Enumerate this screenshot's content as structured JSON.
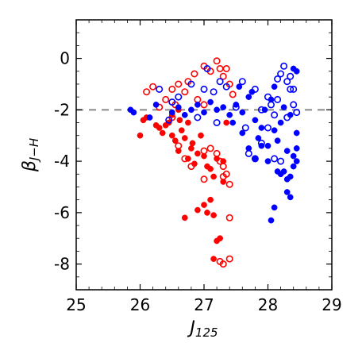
{
  "chart_data": {
    "type": "scatter",
    "title": "",
    "xlabel": {
      "main": "J",
      "sub": "125"
    },
    "ylabel": {
      "main": "β",
      "sub": "J−H"
    },
    "xlim": [
      25,
      29
    ],
    "ylim": [
      -9,
      1.5
    ],
    "xticks": [
      "25",
      "26",
      "27",
      "28",
      "29"
    ],
    "xtick_values": [
      25,
      26,
      27,
      28,
      29
    ],
    "yticks": [
      "0",
      "-2",
      "-4",
      "-6",
      "-8"
    ],
    "ytick_values": [
      0,
      -2,
      -4,
      -6,
      -8
    ],
    "reference_line": {
      "y": -2,
      "style": "dashed",
      "color": "#888888"
    },
    "legend": "none",
    "grid": false,
    "series": [
      {
        "color": "#ff0000",
        "marker": "filled-circle",
        "points": [
          [
            26.0,
            -3.0
          ],
          [
            26.05,
            -2.4
          ],
          [
            26.1,
            -2.3
          ],
          [
            26.3,
            -2.7
          ],
          [
            26.35,
            -2.9
          ],
          [
            26.4,
            -2.6
          ],
          [
            26.5,
            -3.0
          ],
          [
            26.55,
            -3.2
          ],
          [
            26.6,
            -3.6
          ],
          [
            26.62,
            -2.4
          ],
          [
            26.65,
            -2.8
          ],
          [
            26.7,
            -3.1
          ],
          [
            26.75,
            -3.9
          ],
          [
            26.8,
            -3.5
          ],
          [
            26.82,
            -3.3
          ],
          [
            26.85,
            -4.1
          ],
          [
            26.9,
            -3.7
          ],
          [
            26.95,
            -3.0
          ],
          [
            27.0,
            -3.8
          ],
          [
            27.05,
            -4.2
          ],
          [
            27.1,
            -4.3
          ],
          [
            27.15,
            -4.6
          ],
          [
            27.2,
            -3.9
          ],
          [
            27.3,
            -4.0
          ],
          [
            26.7,
            -6.2
          ],
          [
            26.9,
            -5.9
          ],
          [
            27.0,
            -5.7
          ],
          [
            27.1,
            -5.5
          ],
          [
            27.15,
            -6.1
          ],
          [
            27.05,
            -6.0
          ],
          [
            27.2,
            -7.1
          ],
          [
            27.25,
            -7.0
          ],
          [
            27.15,
            -7.8
          ],
          [
            27.3,
            -4.8
          ],
          [
            27.35,
            -2.5
          ],
          [
            26.5,
            -2.2
          ],
          [
            26.6,
            -2.0
          ],
          [
            26.45,
            -2.5
          ],
          [
            26.25,
            -2.6
          ],
          [
            26.75,
            -2.5
          ]
        ]
      },
      {
        "color": "#ff0000",
        "marker": "open-circle",
        "points": [
          [
            26.1,
            -1.3
          ],
          [
            26.2,
            -1.1
          ],
          [
            26.3,
            -1.9
          ],
          [
            26.4,
            -1.6
          ],
          [
            26.5,
            -1.2
          ],
          [
            26.6,
            -1.0
          ],
          [
            26.7,
            -1.3
          ],
          [
            26.75,
            -0.9
          ],
          [
            26.85,
            -0.6
          ],
          [
            27.0,
            -0.3
          ],
          [
            27.1,
            -0.5
          ],
          [
            27.2,
            -0.1
          ],
          [
            27.25,
            -0.4
          ],
          [
            27.3,
            -0.7
          ],
          [
            27.35,
            -0.4
          ],
          [
            27.4,
            -1.0
          ],
          [
            27.45,
            -1.4
          ],
          [
            26.5,
            -2.3
          ],
          [
            26.6,
            -3.4
          ],
          [
            26.7,
            -3.9
          ],
          [
            26.8,
            -4.2
          ],
          [
            27.0,
            -3.6
          ],
          [
            27.1,
            -3.5
          ],
          [
            27.2,
            -3.7
          ],
          [
            27.25,
            -4.0
          ],
          [
            27.3,
            -4.2
          ],
          [
            27.35,
            -4.5
          ],
          [
            27.4,
            -4.9
          ],
          [
            27.4,
            -6.2
          ],
          [
            27.0,
            -4.7
          ],
          [
            27.3,
            -4.6
          ],
          [
            27.25,
            -7.9
          ],
          [
            27.4,
            -7.8
          ],
          [
            27.3,
            -8.0
          ],
          [
            26.9,
            -1.6
          ],
          [
            27.0,
            -1.8
          ],
          [
            26.55,
            -1.8
          ]
        ]
      },
      {
        "color": "#0000ff",
        "marker": "filled-circle",
        "points": [
          [
            25.85,
            -2.0
          ],
          [
            25.9,
            -2.1
          ],
          [
            26.15,
            -2.3
          ],
          [
            26.25,
            -1.8
          ],
          [
            26.5,
            -2.1
          ],
          [
            26.6,
            -1.9
          ],
          [
            26.7,
            -2.2
          ],
          [
            26.8,
            -2.0
          ],
          [
            26.9,
            -1.8
          ],
          [
            27.0,
            -2.1
          ],
          [
            27.1,
            -1.7
          ],
          [
            27.2,
            -2.0
          ],
          [
            27.3,
            -1.9
          ],
          [
            27.4,
            -2.2
          ],
          [
            27.5,
            -1.8
          ],
          [
            27.6,
            -2.1
          ],
          [
            27.7,
            -1.5
          ],
          [
            27.75,
            -1.3
          ],
          [
            27.8,
            -2.4
          ],
          [
            27.85,
            -3.1
          ],
          [
            27.9,
            -2.7
          ],
          [
            27.95,
            -2.0
          ],
          [
            28.0,
            -3.4
          ],
          [
            28.05,
            -1.6
          ],
          [
            28.1,
            -2.8
          ],
          [
            28.15,
            -3.2
          ],
          [
            28.2,
            -2.5
          ],
          [
            28.25,
            -1.9
          ],
          [
            28.3,
            -3.6
          ],
          [
            28.35,
            -2.2
          ],
          [
            28.4,
            -3.8
          ],
          [
            28.45,
            -2.9
          ],
          [
            27.7,
            -3.5
          ],
          [
            27.8,
            -3.9
          ],
          [
            27.9,
            -3.4
          ],
          [
            28.0,
            -4.0
          ],
          [
            28.1,
            -5.8
          ],
          [
            28.05,
            -6.3
          ],
          [
            28.3,
            -4.7
          ],
          [
            28.35,
            -4.6
          ],
          [
            28.4,
            -4.2
          ],
          [
            28.45,
            -4.0
          ],
          [
            28.45,
            -3.5
          ],
          [
            28.2,
            -4.5
          ],
          [
            28.15,
            -4.4
          ],
          [
            28.35,
            -5.4
          ],
          [
            28.45,
            -0.5
          ],
          [
            28.4,
            -0.4
          ],
          [
            28.1,
            -1.1
          ],
          [
            27.55,
            -1.1
          ],
          [
            27.6,
            -2.9
          ],
          [
            27.45,
            -2.5
          ],
          [
            28.25,
            -4.4
          ],
          [
            28.3,
            -5.2
          ]
        ]
      },
      {
        "color": "#0000ff",
        "marker": "open-circle",
        "points": [
          [
            26.3,
            -1.2
          ],
          [
            26.45,
            -2.4
          ],
          [
            26.5,
            -1.7
          ],
          [
            26.6,
            -1.5
          ],
          [
            26.8,
            -1.0
          ],
          [
            27.0,
            -1.2
          ],
          [
            27.15,
            -1.3
          ],
          [
            27.25,
            -0.9
          ],
          [
            27.35,
            -1.1
          ],
          [
            27.5,
            -1.9
          ],
          [
            27.65,
            -2.7
          ],
          [
            27.7,
            -3.7
          ],
          [
            27.8,
            -3.9
          ],
          [
            27.9,
            -3.3
          ],
          [
            28.0,
            -1.5
          ],
          [
            28.05,
            -1.8
          ],
          [
            28.1,
            -2.2
          ],
          [
            28.15,
            -0.8
          ],
          [
            28.2,
            -0.6
          ],
          [
            28.25,
            -0.3
          ],
          [
            28.3,
            -0.9
          ],
          [
            28.35,
            -1.2
          ],
          [
            28.4,
            -1.8
          ],
          [
            28.45,
            -2.1
          ],
          [
            28.4,
            -1.2
          ],
          [
            28.1,
            -3.9
          ],
          [
            28.2,
            -4.0
          ],
          [
            27.9,
            -2.0
          ],
          [
            27.8,
            -1.2
          ],
          [
            28.0,
            -2.7
          ],
          [
            26.9,
            -2.3
          ],
          [
            27.2,
            -2.5
          ],
          [
            28.3,
            -2.3
          ],
          [
            28.15,
            -1.6
          ],
          [
            28.35,
            -0.7
          ],
          [
            27.6,
            -0.9
          ],
          [
            27.05,
            -0.4
          ]
        ]
      }
    ]
  }
}
